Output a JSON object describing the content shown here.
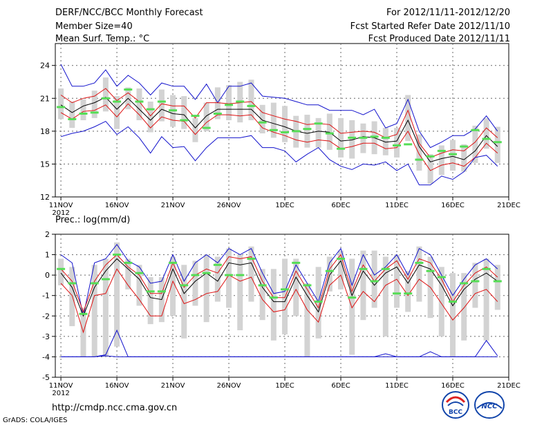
{
  "header": {
    "title": "DERF/NCC/BCC Monthly Forecast",
    "member_size": "Member Size=40",
    "variable_label": "Mean Surf. Temp.: °C",
    "forecast_period": "For 2012/11/11-2012/12/20",
    "started_date": "Fcst Started Refer Date 2012/11/10",
    "produced_date": "Fcst Produced Date 2012/11/11"
  },
  "footer": {
    "url": "http://cmdp.ncc.cma.gov.cn",
    "credit": "GrADS: COLA/IGES",
    "logo_bcc": "BCC",
    "logo_ncc": "NCC"
  },
  "colors": {
    "box": "#d3d3d3",
    "observation": "#55dd55",
    "mean": "#000000",
    "spread": "#dd1111",
    "extreme": "#1111cc"
  },
  "chart_data": [
    {
      "type": "line",
      "title": "Mean Surf. Temp.: °C",
      "ylim": [
        12,
        26
      ],
      "yticks": [
        12,
        15,
        18,
        21,
        24
      ],
      "x": [
        1,
        2,
        3,
        4,
        5,
        6,
        7,
        8,
        9,
        10,
        11,
        12,
        13,
        14,
        15,
        16,
        17,
        18,
        19,
        20,
        21,
        22,
        23,
        24,
        25,
        26,
        27,
        28,
        29,
        30,
        31,
        32,
        33,
        34,
        35,
        36,
        37,
        38,
        39,
        40
      ],
      "xlim": [
        0.5,
        41
      ],
      "xtick_positions": [
        1,
        6,
        11,
        16,
        21,
        26,
        31,
        36,
        41
      ],
      "xtick_labels": [
        "11NOV",
        "16NOV",
        "21NOV",
        "26NOV",
        "1DEC",
        "6DEC",
        "11DEC",
        "16DEC",
        "21DEC"
      ],
      "year_label": "2012",
      "series": [
        {
          "name": "max",
          "values": [
            24.1,
            22.1,
            22.1,
            22.4,
            23.6,
            22.1,
            23.1,
            22.4,
            21.3,
            22.4,
            22.1,
            22.1,
            20.9,
            22.3,
            20.6,
            22.1,
            22.1,
            22.4,
            21.2,
            21.1,
            21.0,
            20.7,
            20.4,
            20.4,
            19.9,
            19.9,
            19.9,
            19.5,
            20.0,
            18.3,
            18.7,
            20.9,
            18.0,
            16.5,
            17.0,
            17.6,
            17.6,
            18.2,
            19.4,
            18.0
          ]
        },
        {
          "name": "upper",
          "values": [
            21.3,
            20.6,
            21.0,
            21.2,
            21.9,
            20.8,
            21.5,
            20.7,
            19.4,
            20.5,
            20.3,
            20.3,
            19.2,
            20.6,
            20.6,
            20.5,
            20.6,
            20.7,
            19.7,
            19.4,
            19.1,
            18.9,
            18.6,
            18.7,
            18.6,
            17.8,
            17.9,
            18.0,
            17.9,
            17.4,
            17.7,
            19.9,
            16.9,
            15.6,
            16.0,
            16.3,
            16.2,
            17.0,
            18.3,
            17.4
          ]
        },
        {
          "name": "mean",
          "values": [
            20.4,
            19.7,
            20.3,
            20.6,
            21.1,
            20.0,
            21.0,
            20.0,
            19.0,
            20.0,
            19.6,
            19.5,
            18.3,
            19.4,
            20.0,
            20.0,
            20.0,
            20.0,
            19.0,
            18.7,
            18.4,
            18.0,
            17.8,
            18.0,
            17.9,
            17.1,
            17.2,
            17.5,
            17.4,
            17.0,
            17.1,
            19.0,
            16.6,
            15.2,
            15.5,
            15.7,
            15.4,
            16.2,
            17.6,
            16.6
          ]
        },
        {
          "name": "lower",
          "values": [
            19.7,
            19.1,
            19.8,
            19.9,
            20.4,
            19.3,
            20.5,
            19.5,
            18.3,
            19.3,
            19.0,
            18.9,
            17.7,
            18.8,
            19.5,
            19.5,
            19.4,
            19.5,
            18.3,
            17.9,
            17.6,
            17.2,
            17.0,
            17.2,
            17.1,
            16.4,
            16.6,
            16.9,
            16.9,
            16.4,
            16.5,
            18.0,
            15.9,
            14.4,
            14.9,
            15.1,
            14.8,
            15.6,
            16.9,
            16.0
          ]
        },
        {
          "name": "min",
          "values": [
            17.5,
            17.8,
            18.0,
            18.4,
            18.9,
            17.7,
            18.4,
            17.4,
            16.0,
            17.5,
            16.5,
            16.6,
            15.3,
            16.5,
            17.4,
            17.4,
            17.4,
            17.6,
            16.5,
            16.5,
            16.2,
            15.2,
            15.9,
            16.5,
            15.4,
            14.8,
            14.5,
            15.0,
            14.9,
            15.2,
            14.4,
            15.0,
            13.1,
            13.1,
            13.9,
            13.6,
            14.3,
            15.6,
            15.8,
            14.8
          ]
        }
      ],
      "box_low": [
        19.1,
        18.3,
        19.0,
        19.2,
        19.8,
        18.2,
        20.0,
        19.0,
        17.9,
        18.9,
        18.4,
        18.2,
        17.0,
        18.0,
        19.1,
        19.0,
        18.8,
        19.0,
        17.8,
        17.4,
        17.0,
        16.5,
        16.5,
        16.5,
        16.3,
        15.6,
        15.5,
        16.0,
        15.9,
        15.8,
        15.6,
        17.1,
        14.4,
        13.2,
        14.0,
        14.4,
        14.3,
        15.1,
        16.4,
        15.1
      ],
      "box_high": [
        21.9,
        20.7,
        20.9,
        21.7,
        22.9,
        21.2,
        22.0,
        21.9,
        20.7,
        21.8,
        21.3,
        21.2,
        19.2,
        20.6,
        22.0,
        22.2,
        22.5,
        22.7,
        20.4,
        20.6,
        20.3,
        19.4,
        19.5,
        19.2,
        19.6,
        19.2,
        19.0,
        18.7,
        18.9,
        18.3,
        18.3,
        21.3,
        17.7,
        15.9,
        16.7,
        17.2,
        16.8,
        18.5,
        19.2,
        18.4
      ],
      "observation": [
        20.2,
        19.1,
        19.6,
        19.7,
        21.0,
        20.7,
        21.8,
        20.7,
        20.0,
        20.7,
        19.9,
        19.0,
        19.4,
        18.3,
        19.6,
        20.4,
        20.7,
        20.3,
        18.8,
        18.1,
        17.9,
        18.0,
        18.2,
        18.7,
        17.8,
        16.4,
        17.4,
        17.4,
        17.5,
        17.4,
        16.7,
        16.8,
        15.4,
        15.7,
        16.2,
        15.9,
        16.6,
        18.1,
        17.3,
        17.0
      ]
    },
    {
      "type": "line",
      "title": "Prec.: log(mm/d)",
      "ylim": [
        -5,
        2
      ],
      "yticks": [
        -5,
        -4,
        -3,
        -2,
        -1,
        0,
        1,
        2
      ],
      "x": [
        1,
        2,
        3,
        4,
        5,
        6,
        7,
        8,
        9,
        10,
        11,
        12,
        13,
        14,
        15,
        16,
        17,
        18,
        19,
        20,
        21,
        22,
        23,
        24,
        25,
        26,
        27,
        28,
        29,
        30,
        31,
        32,
        33,
        34,
        35,
        36,
        37,
        38,
        39,
        40
      ],
      "xlim": [
        0.5,
        41
      ],
      "xtick_positions": [
        1,
        6,
        11,
        16,
        21,
        26,
        31,
        36,
        41
      ],
      "xtick_labels": [
        "11NOV",
        "16NOV",
        "21NOV",
        "26NOV",
        "1DEC",
        "6DEC",
        "11DEC",
        "16DEC",
        "21DEC"
      ],
      "year_label": "2012",
      "series": [
        {
          "name": "max",
          "values": [
            1.0,
            0.6,
            -2.0,
            0.6,
            0.8,
            1.5,
            0.7,
            0.4,
            -0.4,
            -0.3,
            1.0,
            -0.3,
            0.6,
            1.0,
            0.6,
            1.3,
            1.0,
            1.3,
            0.1,
            -0.9,
            -0.8,
            0.5,
            -0.4,
            -1.3,
            0.6,
            1.3,
            -0.5,
            1.0,
            0.0,
            0.4,
            1.0,
            0.0,
            1.3,
            1.0,
            0.0,
            -1.0,
            -0.2,
            0.5,
            0.8,
            0.3
          ]
        },
        {
          "name": "upper",
          "values": [
            0.3,
            -0.3,
            -1.8,
            -0.3,
            0.5,
            1.0,
            0.4,
            0.0,
            -0.9,
            -0.9,
            0.6,
            -0.6,
            0.0,
            0.3,
            0.1,
            0.9,
            0.8,
            0.9,
            -0.3,
            -1.1,
            -1.1,
            0.2,
            -0.7,
            -1.6,
            0.3,
            1.0,
            -0.8,
            0.5,
            -0.3,
            0.3,
            0.7,
            -0.2,
            0.8,
            0.6,
            -0.2,
            -1.3,
            -0.5,
            0.1,
            0.4,
            -0.1
          ]
        },
        {
          "name": "mean",
          "values": [
            0.1,
            -0.6,
            -2.0,
            -0.6,
            0.2,
            0.8,
            0.3,
            -0.2,
            -1.1,
            -1.2,
            0.3,
            -0.9,
            -0.3,
            0.1,
            -0.3,
            0.6,
            0.5,
            0.6,
            -0.6,
            -1.3,
            -1.3,
            -0.1,
            -1.0,
            -1.8,
            0.0,
            0.7,
            -1.0,
            0.2,
            -0.5,
            0.1,
            0.4,
            -0.4,
            0.5,
            0.3,
            -0.5,
            -1.5,
            -0.7,
            -0.2,
            0.1,
            -0.3
          ]
        },
        {
          "name": "lower",
          "values": [
            -0.4,
            -1.0,
            -2.8,
            -1.0,
            -0.9,
            0.3,
            -0.5,
            -1.2,
            -2.0,
            -2.0,
            -0.3,
            -1.4,
            -1.2,
            -0.9,
            -0.8,
            0.0,
            -0.3,
            -0.1,
            -1.2,
            -1.8,
            -1.7,
            -0.7,
            -1.7,
            -2.3,
            -0.5,
            0.0,
            -1.6,
            -0.8,
            -1.3,
            -0.5,
            -0.2,
            -1.0,
            -0.2,
            -0.6,
            -1.4,
            -2.2,
            -1.6,
            -0.9,
            -0.7,
            -1.3
          ]
        },
        {
          "name": "min",
          "values": [
            -4.0,
            -4.0,
            -4.0,
            -4.0,
            -3.9,
            -2.7,
            -4.0,
            -4.0,
            -4.0,
            -4.0,
            -4.0,
            -4.0,
            -4.0,
            -4.0,
            -4.0,
            -4.0,
            -4.0,
            -4.0,
            -4.0,
            -4.0,
            -4.0,
            -4.0,
            -4.0,
            -4.0,
            -4.0,
            -4.0,
            -4.0,
            -4.0,
            -4.0,
            -3.85,
            -4.0,
            -4.0,
            -4.0,
            -3.75,
            -4.0,
            -4.0,
            -4.0,
            -4.0,
            -3.2,
            -3.95
          ]
        },
        {
          "name": "zero_ref",
          "values": [
            -4.0,
            -4.0,
            -4.0,
            -4.0,
            -3.95,
            -4.0,
            -4.0,
            -4.0,
            -4.0,
            -4.0,
            -4.0,
            -4.0,
            -4.0,
            -4.0,
            -4.0,
            -4.0,
            -4.0,
            -4.0,
            -4.0,
            -4.0,
            -4.0,
            -4.0,
            -4.0,
            -4.0,
            -4.0,
            -4.0,
            -4.0,
            -4.0,
            -4.0,
            -4.0,
            -4.0,
            -4.0,
            -4.0,
            -4.0,
            -4.0,
            -4.0,
            -4.0,
            -4.0,
            -4.0,
            -4.0
          ]
        }
      ],
      "box_low": [
        -0.5,
        -2.5,
        -4.0,
        -4.0,
        -4.0,
        -3.5,
        -0.7,
        -1.5,
        -2.4,
        -2.3,
        -2.0,
        -3.1,
        -1.5,
        -2.3,
        -1.3,
        -1.6,
        -2.7,
        -1.3,
        -2.2,
        -3.2,
        -2.9,
        -2.0,
        -4.0,
        -3.1,
        -0.8,
        -0.7,
        -3.9,
        -2.2,
        -1.6,
        -3.0,
        -1.6,
        -1.8,
        -1.3,
        -2.1,
        -3.0,
        -4.0,
        -3.2,
        -1.6,
        -3.2,
        -1.7
      ],
      "box_high": [
        0.8,
        0.4,
        -1.6,
        0.5,
        0.8,
        1.6,
        0.8,
        0.5,
        -0.1,
        -0.1,
        0.9,
        0.5,
        0.7,
        1.0,
        0.9,
        1.3,
        1.0,
        1.4,
        0.3,
        0.3,
        0.8,
        0.8,
        -0.4,
        0.4,
        0.9,
        1.2,
        0.8,
        1.2,
        1.2,
        0.9,
        1.0,
        0.2,
        1.4,
        0.9,
        0.4,
        0.1,
        0.1,
        0.6,
        0.8,
        0.5
      ],
      "observation": [
        0.3,
        -0.4,
        -1.9,
        -0.4,
        -0.2,
        1.0,
        0.6,
        0.1,
        -0.8,
        -0.8,
        0.6,
        -0.5,
        0.0,
        0.1,
        0.5,
        0.0,
        0.0,
        0.8,
        -0.5,
        -1.1,
        -0.7,
        0.6,
        -0.5,
        -1.3,
        0.2,
        0.8,
        -1.1,
        0.3,
        -0.3,
        0.3,
        -0.9,
        -0.9,
        0.6,
        0.2,
        -0.1,
        -1.3,
        -0.4,
        -0.3,
        0.3,
        -0.3
      ]
    }
  ]
}
